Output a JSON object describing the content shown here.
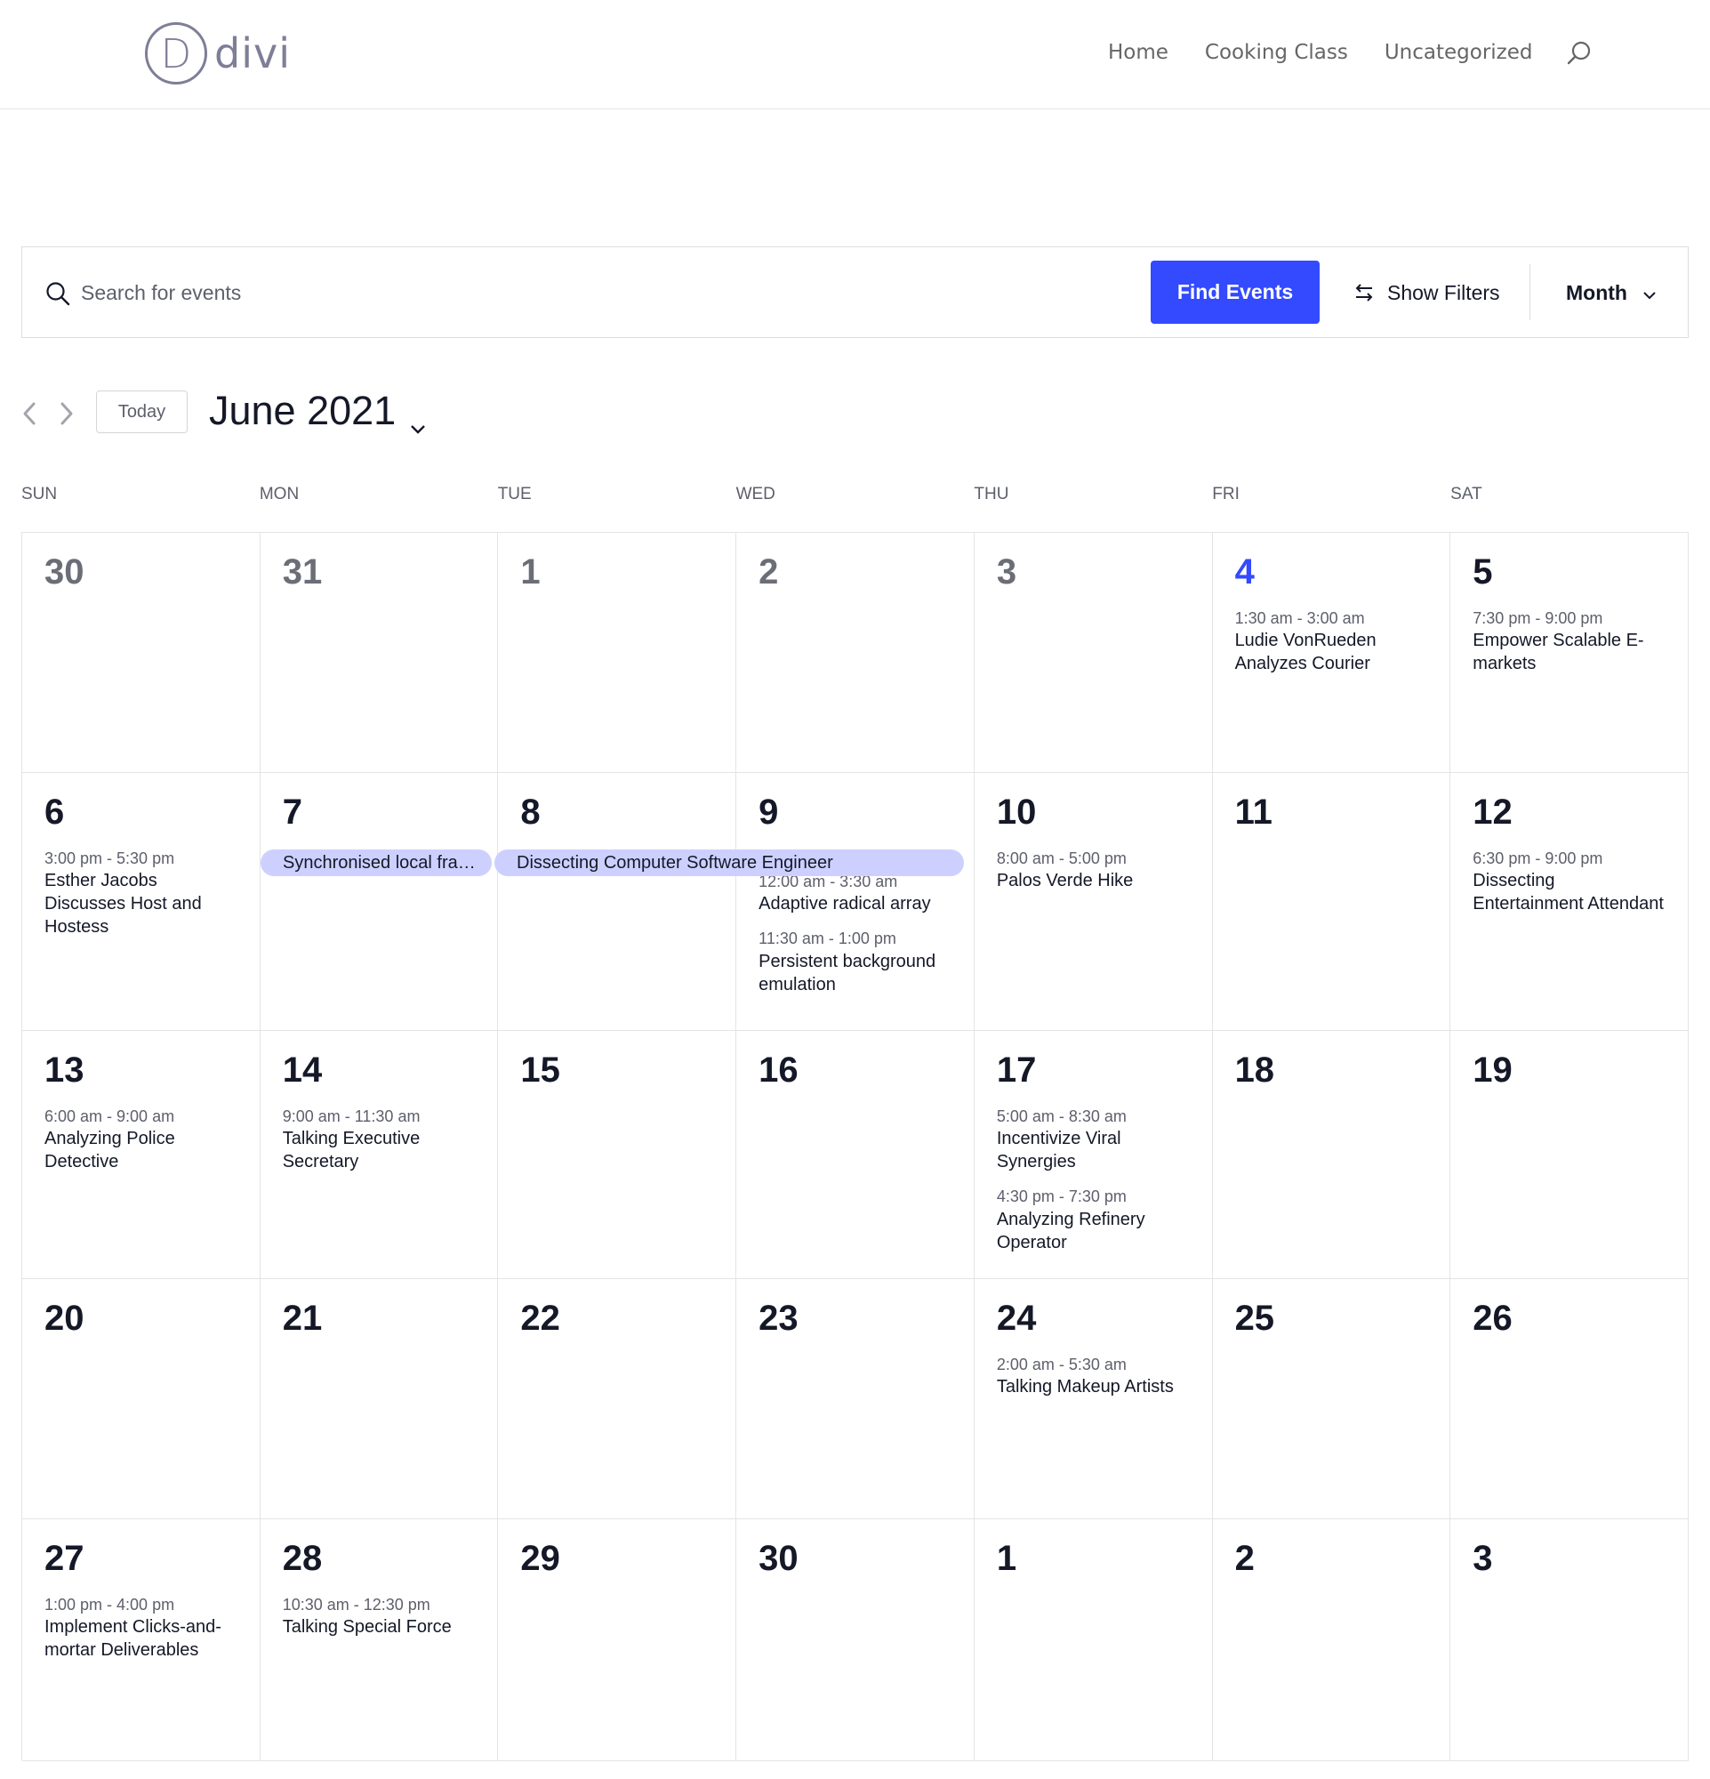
{
  "header": {
    "logo_letter": "D",
    "logo_text": "divi",
    "nav": [
      {
        "label": "Home"
      },
      {
        "label": "Cooking Class"
      },
      {
        "label": "Uncategorized"
      }
    ]
  },
  "search_bar": {
    "placeholder": "Search for events",
    "find_label": "Find Events",
    "filters_label": "Show Filters",
    "view_label": "Month",
    "accent_color": "#334aff"
  },
  "date_controls": {
    "today_label": "Today",
    "month_title": "June 2021"
  },
  "weekdays": [
    "SUN",
    "MON",
    "TUE",
    "WED",
    "THU",
    "FRI",
    "SAT"
  ],
  "multiday_events": [
    {
      "title": "Synchronised local fra…",
      "bar_color": "#cdd0ff"
    },
    {
      "title": "Dissecting Computer Software Engineer",
      "bar_color": "#cdd0ff"
    }
  ],
  "weeks": [
    [
      {
        "day": "30",
        "state": "muted",
        "events": []
      },
      {
        "day": "31",
        "state": "muted",
        "events": []
      },
      {
        "day": "1",
        "state": "muted",
        "events": []
      },
      {
        "day": "2",
        "state": "muted",
        "events": []
      },
      {
        "day": "3",
        "state": "muted",
        "events": []
      },
      {
        "day": "4",
        "state": "today",
        "events": [
          {
            "time": "1:30 am - 3:00 am",
            "title": "Ludie VonRueden Analyzes Courier"
          }
        ]
      },
      {
        "day": "5",
        "state": "normal",
        "events": [
          {
            "time": "7:30 pm - 9:00 pm",
            "title": "Empower Scalable E-markets"
          }
        ]
      }
    ],
    [
      {
        "day": "6",
        "state": "normal",
        "events": [
          {
            "time": "3:00 pm - 5:30 pm",
            "title": "Esther Jacobs Discusses Host and Hostess"
          }
        ]
      },
      {
        "day": "7",
        "state": "normal",
        "events": []
      },
      {
        "day": "8",
        "state": "normal",
        "events": []
      },
      {
        "day": "9",
        "state": "normal",
        "has_bar": true,
        "events": [
          {
            "time": "12:00 am - 3:30 am",
            "title": "Adaptive radical array"
          },
          {
            "time": "11:30 am - 1:00 pm",
            "title": "Persistent background emulation"
          }
        ]
      },
      {
        "day": "10",
        "state": "normal",
        "events": [
          {
            "time": "8:00 am - 5:00 pm",
            "title": "Palos Verde Hike"
          }
        ]
      },
      {
        "day": "11",
        "state": "normal",
        "events": []
      },
      {
        "day": "12",
        "state": "normal",
        "events": [
          {
            "time": "6:30 pm - 9:00 pm",
            "title": "Dissecting Entertainment Attendant"
          }
        ]
      }
    ],
    [
      {
        "day": "13",
        "state": "normal",
        "events": [
          {
            "time": "6:00 am - 9:00 am",
            "title": "Analyzing Police Detective"
          }
        ]
      },
      {
        "day": "14",
        "state": "normal",
        "events": [
          {
            "time": "9:00 am - 11:30 am",
            "title": "Talking Executive Secretary"
          }
        ]
      },
      {
        "day": "15",
        "state": "normal",
        "events": []
      },
      {
        "day": "16",
        "state": "normal",
        "events": []
      },
      {
        "day": "17",
        "state": "normal",
        "events": [
          {
            "time": "5:00 am - 8:30 am",
            "title": "Incentivize Viral Synergies"
          },
          {
            "time": "4:30 pm - 7:30 pm",
            "title": "Analyzing Refinery Operator"
          }
        ]
      },
      {
        "day": "18",
        "state": "normal",
        "events": []
      },
      {
        "day": "19",
        "state": "normal",
        "events": []
      }
    ],
    [
      {
        "day": "20",
        "state": "normal",
        "events": []
      },
      {
        "day": "21",
        "state": "normal",
        "events": []
      },
      {
        "day": "22",
        "state": "normal",
        "events": []
      },
      {
        "day": "23",
        "state": "normal",
        "events": []
      },
      {
        "day": "24",
        "state": "normal",
        "events": [
          {
            "time": "2:00 am - 5:30 am",
            "title": "Talking Makeup Artists"
          }
        ]
      },
      {
        "day": "25",
        "state": "normal",
        "events": []
      },
      {
        "day": "26",
        "state": "normal",
        "events": []
      }
    ],
    [
      {
        "day": "27",
        "state": "normal",
        "events": [
          {
            "time": "1:00 pm - 4:00 pm",
            "title": "Implement Clicks-and-mortar Deliverables"
          }
        ]
      },
      {
        "day": "28",
        "state": "normal",
        "events": [
          {
            "time": "10:30 am - 12:30 pm",
            "title": "Talking Special Force"
          }
        ]
      },
      {
        "day": "29",
        "state": "normal",
        "events": []
      },
      {
        "day": "30",
        "state": "normal",
        "events": []
      },
      {
        "day": "1",
        "state": "normal",
        "events": []
      },
      {
        "day": "2",
        "state": "normal",
        "events": []
      },
      {
        "day": "3",
        "state": "normal",
        "events": []
      }
    ]
  ]
}
